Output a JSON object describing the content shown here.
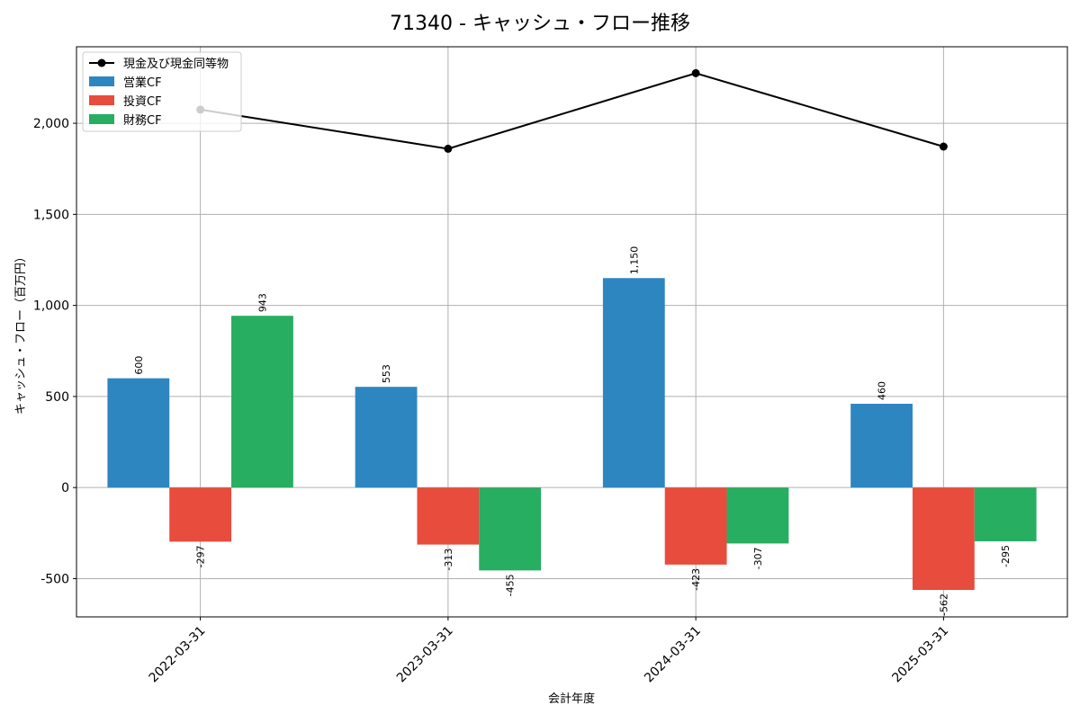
{
  "chart_data": {
    "type": "bar",
    "title": "71340 - キャッシュ・フロー推移",
    "xlabel": "会計年度",
    "ylabel": "キャッシュ・フロー（百万円）",
    "categories": [
      "2022-03-31",
      "2023-03-31",
      "2024-03-31",
      "2025-03-31"
    ],
    "ylim": [
      -710,
      2420
    ],
    "yticks": [
      -500,
      0,
      500,
      1000,
      1500,
      2000
    ],
    "ytick_labels": [
      "-500",
      "0",
      "500",
      "1,000",
      "1,500",
      "2,000"
    ],
    "grid": true,
    "legend_position": "top-left",
    "series": [
      {
        "name": "営業CF",
        "kind": "bar",
        "color": "#2e86c1",
        "values": [
          600,
          553,
          1150,
          460
        ],
        "labels": [
          "600",
          "553",
          "1,150",
          "460"
        ]
      },
      {
        "name": "投資CF",
        "kind": "bar",
        "color": "#e74c3c",
        "values": [
          -297,
          -313,
          -423,
          -562
        ],
        "labels": [
          "-297",
          "-313",
          "-423",
          "-562"
        ]
      },
      {
        "name": "財務CF",
        "kind": "bar",
        "color": "#27ae60",
        "values": [
          943,
          -455,
          -307,
          -295
        ],
        "labels": [
          "943",
          "-455",
          "-307",
          "-295"
        ]
      }
    ],
    "line_series": {
      "name": "現金及び現金同等物",
      "kind": "line",
      "color": "#000000",
      "values": [
        2075,
        1860,
        2275,
        1872
      ]
    }
  }
}
